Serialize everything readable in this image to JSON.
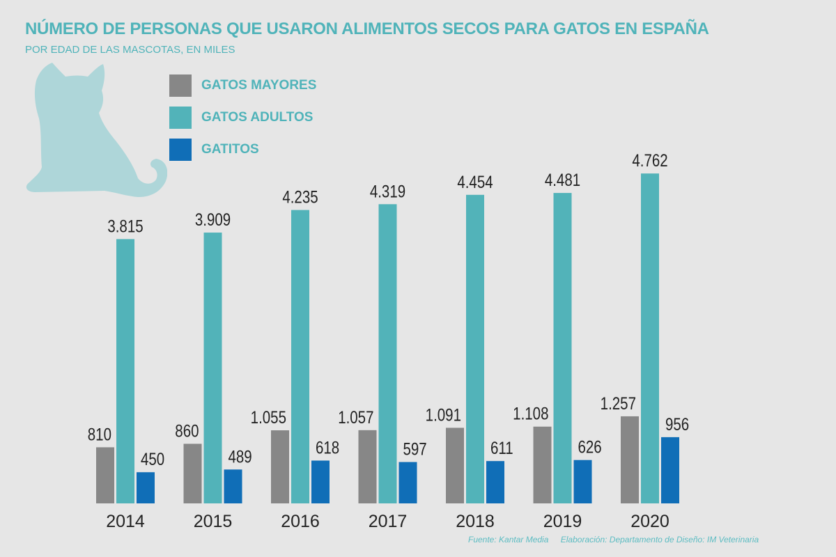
{
  "title": "NÚMERO DE PERSONAS QUE USARON ALIMENTOS SECOS PARA GATOS EN ESPAÑA",
  "subtitle": "POR EDAD DE LAS MASCOTAS, EN MILES",
  "source": {
    "fuente": "Fuente: Kantar Media",
    "elaboracion": "Elaboración: Departamento de Diseño: IM Veterinaria"
  },
  "decoration": {
    "icon": "cat-silhouette-icon",
    "color": "#aed6d9"
  },
  "chart_data": {
    "type": "bar",
    "title": "NÚMERO DE PERSONAS QUE USARON ALIMENTOS SECOS PARA GATOS EN ESPAÑA",
    "subtitle": "POR EDAD DE LAS MASCOTAS, EN MILES",
    "xlabel": "",
    "ylabel": "",
    "ylim": [
      0,
      5000
    ],
    "grid": false,
    "legend_placement": "top-left",
    "categories": [
      "2014",
      "2015",
      "2016",
      "2017",
      "2018",
      "2019",
      "2020"
    ],
    "series": [
      {
        "name": "GATOS MAYORES",
        "color": "#878787",
        "values": [
          810,
          860,
          1055,
          1057,
          1091,
          1108,
          1257
        ],
        "labels": [
          "810",
          "860",
          "1.055",
          "1.057",
          "1.091",
          "1.108",
          "1.257"
        ]
      },
      {
        "name": "GATOS ADULTOS",
        "color": "#52b3b9",
        "values": [
          3815,
          3909,
          4235,
          4319,
          4454,
          4481,
          4762
        ],
        "labels": [
          "3.815",
          "3.909",
          "4.235",
          "4.319",
          "4.454",
          "4.481",
          "4.762"
        ]
      },
      {
        "name": "GATITOS",
        "color": "#106eb7",
        "values": [
          450,
          489,
          618,
          597,
          611,
          626,
          956
        ],
        "labels": [
          "450",
          "489",
          "618",
          "597",
          "611",
          "626",
          "956"
        ]
      }
    ]
  }
}
